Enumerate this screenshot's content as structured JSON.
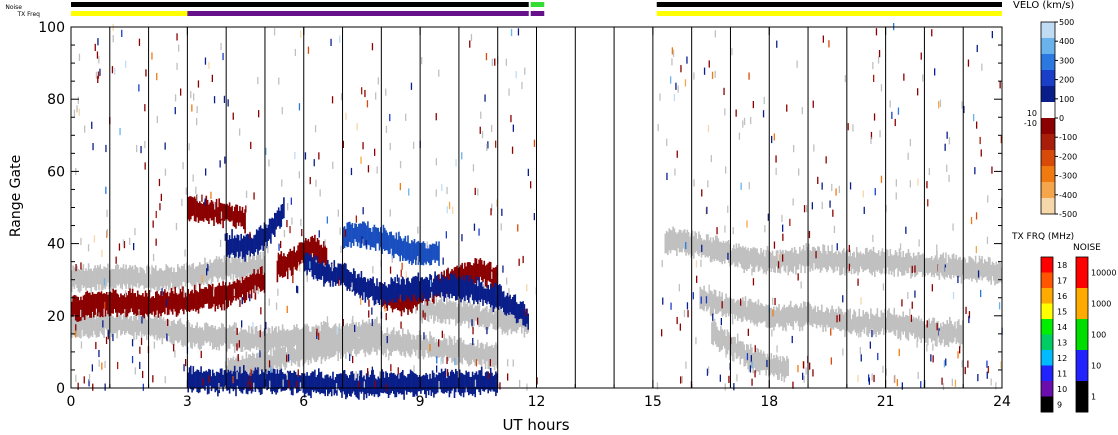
{
  "chart_data": {
    "type": "heatmap",
    "title": "",
    "xlabel": "UT hours",
    "ylabel": "Range Gate",
    "xlim": [
      0,
      24
    ],
    "ylim": [
      0,
      100
    ],
    "xticks": [
      "0",
      "3",
      "6",
      "9",
      "12",
      "15",
      "18",
      "21",
      "24"
    ],
    "yticks": [
      "0",
      "20",
      "40",
      "60",
      "80",
      "100"
    ],
    "data_gap_hours": [
      12.0,
      15.1
    ],
    "status_bars": {
      "noise_label": "Noise",
      "txfreq_label": "TX Freq",
      "noise_segments": [
        {
          "start": 0.0,
          "end": 11.8,
          "color": "#000000"
        },
        {
          "start": 11.85,
          "end": 12.2,
          "color": "#33dd33"
        },
        {
          "start": 15.1,
          "end": 24.0,
          "color": "#000000"
        }
      ],
      "txfreq_segments": [
        {
          "start": 0.0,
          "end": 3.0,
          "color": "#ffff00"
        },
        {
          "start": 3.0,
          "end": 11.8,
          "color": "#66118a"
        },
        {
          "start": 11.85,
          "end": 12.2,
          "color": "#66118a"
        },
        {
          "start": 15.1,
          "end": 24.0,
          "color": "#ffff00"
        }
      ]
    },
    "regions": [
      {
        "name": "ground scatter",
        "color": "#c0c0c0",
        "pts": [
          [
            0.0,
            30
          ],
          [
            1.0,
            31
          ],
          [
            2.0,
            30
          ],
          [
            3.0,
            31
          ],
          [
            4.0,
            33
          ],
          [
            5.0,
            34
          ]
        ]
      },
      {
        "name": "ground scatter",
        "color": "#c0c0c0",
        "pts": [
          [
            0.0,
            17
          ],
          [
            1.0,
            18
          ],
          [
            2.0,
            17
          ],
          [
            3.0,
            15
          ],
          [
            4.0,
            14
          ],
          [
            5.0,
            13
          ],
          [
            6.0,
            14
          ],
          [
            7.0,
            15
          ],
          [
            8.0,
            16
          ]
        ]
      },
      {
        "name": "ground scatter",
        "color": "#c0c0c0",
        "pts": [
          [
            9.0,
            22
          ],
          [
            10.0,
            21
          ],
          [
            11.0,
            19
          ],
          [
            11.8,
            18
          ]
        ]
      },
      {
        "name": "ground scatter",
        "color": "#c0c0c0",
        "pts": [
          [
            4.0,
            5
          ],
          [
            5.0,
            7
          ],
          [
            6.0,
            10
          ],
          [
            7.0,
            12
          ],
          [
            8.0,
            13
          ],
          [
            9.0,
            12
          ],
          [
            10.0,
            10
          ],
          [
            11.0,
            9
          ]
        ]
      },
      {
        "name": "ground scatter",
        "color": "#c0c0c0",
        "pts": [
          [
            15.3,
            41
          ],
          [
            16.0,
            40
          ],
          [
            17.0,
            37
          ],
          [
            18.0,
            35
          ],
          [
            19.0,
            36
          ],
          [
            20.0,
            35
          ],
          [
            21.0,
            35
          ],
          [
            22.0,
            34
          ],
          [
            23.0,
            33
          ],
          [
            24.0,
            32
          ]
        ]
      },
      {
        "name": "ground scatter",
        "color": "#c0c0c0",
        "pts": [
          [
            16.2,
            25
          ],
          [
            17.0,
            22
          ],
          [
            18.0,
            20
          ],
          [
            19.0,
            20
          ],
          [
            20.0,
            18
          ],
          [
            21.0,
            18
          ],
          [
            22.0,
            16
          ],
          [
            23.0,
            15
          ]
        ]
      },
      {
        "name": "ground scatter",
        "color": "#c0c0c0",
        "pts": [
          [
            16.5,
            15
          ],
          [
            17.0,
            12
          ],
          [
            17.5,
            8
          ],
          [
            18.0,
            6
          ],
          [
            18.5,
            5
          ]
        ]
      },
      {
        "name": "negative velocity",
        "color": "#8b0000",
        "pts": [
          [
            0.0,
            22
          ],
          [
            1.0,
            24
          ],
          [
            2.0,
            23
          ],
          [
            3.0,
            24
          ],
          [
            4.0,
            26
          ],
          [
            5.0,
            30
          ]
        ]
      },
      {
        "name": "negative velocity",
        "color": "#8b0000",
        "pts": [
          [
            5.3,
            33
          ],
          [
            5.8,
            36
          ],
          [
            6.2,
            39
          ],
          [
            6.6,
            36
          ]
        ]
      },
      {
        "name": "negative velocity",
        "color": "#8b0000",
        "pts": [
          [
            8.0,
            25
          ],
          [
            8.5,
            24
          ],
          [
            9.0,
            26
          ],
          [
            9.5,
            28
          ],
          [
            10.0,
            31
          ],
          [
            10.5,
            33
          ],
          [
            11.0,
            30
          ]
        ]
      },
      {
        "name": "negative velocity",
        "color": "#8b0000",
        "pts": [
          [
            3.0,
            50
          ],
          [
            3.5,
            49
          ],
          [
            4.0,
            48
          ],
          [
            4.5,
            47
          ]
        ]
      },
      {
        "name": "positive velocity",
        "color": "#0a1e8a",
        "pts": [
          [
            4.0,
            40
          ],
          [
            4.5,
            39
          ],
          [
            5.0,
            42
          ],
          [
            5.3,
            46
          ],
          [
            5.5,
            50
          ]
        ]
      },
      {
        "name": "positive velocity",
        "color": "#0a1e8a",
        "pts": [
          [
            6.0,
            35
          ],
          [
            6.5,
            32
          ],
          [
            7.0,
            31
          ],
          [
            7.5,
            28
          ],
          [
            8.0,
            26
          ],
          [
            8.5,
            27
          ],
          [
            9.0,
            28
          ],
          [
            10.0,
            28
          ],
          [
            11.0,
            25
          ],
          [
            11.8,
            19
          ]
        ]
      },
      {
        "name": "positive velocity",
        "color": "#1a4fc0",
        "pts": [
          [
            7.0,
            42
          ],
          [
            7.5,
            43
          ],
          [
            8.0,
            41
          ],
          [
            8.5,
            39
          ],
          [
            9.0,
            37
          ],
          [
            9.5,
            37
          ]
        ]
      },
      {
        "name": "positive velocity",
        "color": "#0a1e8a",
        "pts": [
          [
            3.0,
            2
          ],
          [
            5.0,
            2
          ],
          [
            7.0,
            1
          ],
          [
            9.0,
            1
          ],
          [
            11.0,
            2
          ]
        ]
      }
    ],
    "colorbar_velo": {
      "label": "VELO (km/s)",
      "ticks": [
        "500",
        "400",
        "300",
        "200",
        "100",
        "0",
        "-100",
        "-200",
        "-300",
        "-400",
        "-500"
      ],
      "extra_ticks": [
        "10",
        "-10"
      ],
      "colors": [
        "#f5d7aa",
        "#f5a54c",
        "#f07a10",
        "#d84a0a",
        "#a81e0a",
        "#8b0000",
        "#ffffff",
        "#0a1e8a",
        "#1a3ec8",
        "#2a78e0",
        "#6ab2ec",
        "#c0dcf5"
      ]
    },
    "colorbar_txfreq": {
      "label": "TX FRQ (MHz)",
      "ticks": [
        "18",
        "17",
        "16",
        "15",
        "14",
        "13",
        "12",
        "11",
        "10",
        "9"
      ],
      "colors": [
        "#ff0000",
        "#ff5500",
        "#ffaa00",
        "#ffff00",
        "#00ee00",
        "#00cc66",
        "#00bbff",
        "#2222ff",
        "#6a0dad",
        "#000000"
      ]
    },
    "colorbar_noise": {
      "label": "NOISE",
      "ticks": [
        "10000",
        "1000",
        "100",
        "10",
        "1"
      ],
      "colors": [
        "#ff0000",
        "#ffaa00",
        "#00dd00",
        "#2222ff",
        "#000000"
      ]
    }
  }
}
